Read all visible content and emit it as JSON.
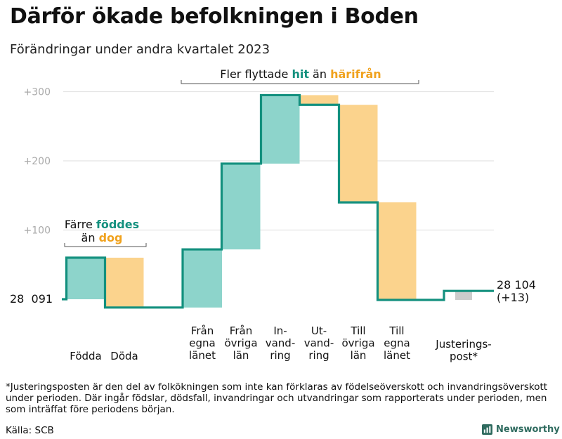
{
  "title": "Därför ökade befolkningen i Boden",
  "subtitle": "Förändringar under andra kvartalet 2023",
  "footnote": "*Justeringsposten är den del av folkökningen som inte kan förklaras av födelseöverskott och invandringsöverskott under perioden. Där ingår födslar, dödsfall, invandringar och utvandringar som rapporterats under perioden, men som inträffat före periodens början.",
  "source": "Källa: SCB",
  "brand": "Newsworthy",
  "colors": {
    "increase": "#8dd4cb",
    "decrease": "#fbd38d",
    "adjustment": "#cccccc",
    "line": "#13907e",
    "accent_teal": "#13907e",
    "accent_orange": "#f0a21e",
    "grid": "#e3e3e3",
    "tick": "#aaaaaa"
  },
  "chart_data": {
    "type": "waterfall",
    "start_value": 28091,
    "start_label": "28  091",
    "end_value": 28104,
    "end_label_lines": [
      "28 104",
      "(+13)"
    ],
    "y_ticks": [
      {
        "value": 100,
        "label": "+100"
      },
      {
        "value": 200,
        "label": "+200"
      },
      {
        "value": 300,
        "label": "+300"
      }
    ],
    "ylim": [
      -15,
      315
    ],
    "steps": [
      {
        "category_lines": [
          "Födda"
        ],
        "change": 60
      },
      {
        "category_lines": [
          "Döda"
        ],
        "change": -72
      },
      {
        "category_lines": [
          "Från",
          "egna",
          "länet"
        ],
        "change": 84
      },
      {
        "category_lines": [
          "Från",
          "övriga",
          "län"
        ],
        "change": 124
      },
      {
        "category_lines": [
          "In-",
          "vand-",
          "ring"
        ],
        "change": 99
      },
      {
        "category_lines": [
          "Ut-",
          "vand-",
          "ring"
        ],
        "change": -14
      },
      {
        "category_lines": [
          "Till",
          "övriga",
          "län"
        ],
        "change": -141
      },
      {
        "category_lines": [
          "Till",
          "egna",
          "länet"
        ],
        "change": -141
      },
      {
        "category_lines": [
          "Justerings-",
          "post*"
        ],
        "change": 13
      }
    ],
    "annotations": [
      {
        "id": "births",
        "line1": "Färre ",
        "hl1": "föddes",
        "line2": "än ",
        "hl2": "dog"
      },
      {
        "id": "migration",
        "text1": "Fler flyttade ",
        "hl1": "hit",
        "text2": " än ",
        "hl2": "härifrån"
      }
    ]
  }
}
